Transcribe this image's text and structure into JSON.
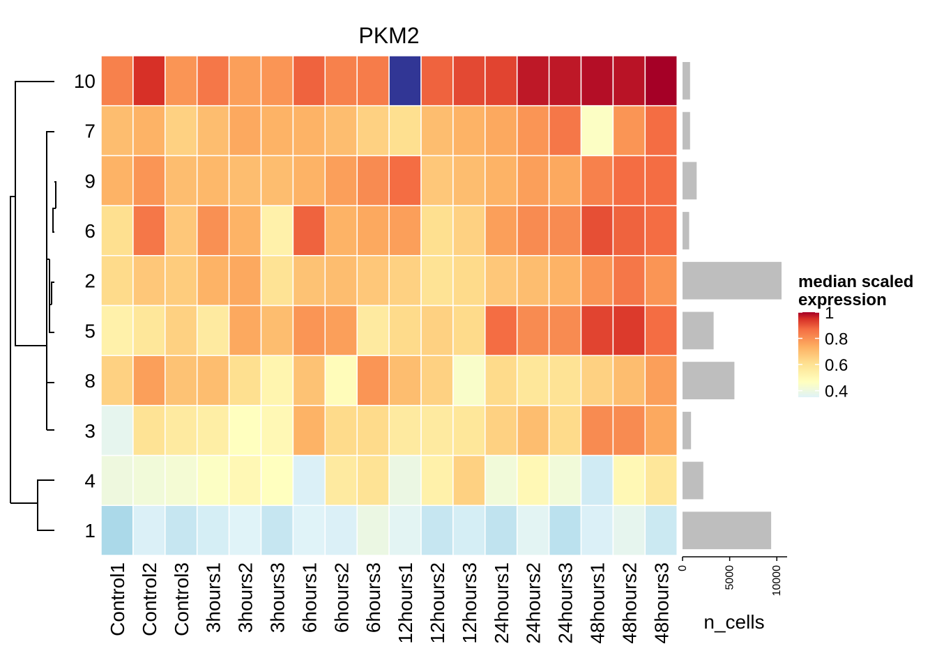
{
  "chart_data": {
    "type": "heatmap",
    "title": "PKM2",
    "columns": [
      "Control1",
      "Control2",
      "Control3",
      "3hours1",
      "3hours2",
      "3hours3",
      "6hours1",
      "6hours2",
      "6hours3",
      "12hours1",
      "12hours2",
      "12hours3",
      "24hours1",
      "24hours2",
      "24hours3",
      "48hours1",
      "48hours2",
      "48hours3"
    ],
    "rows": [
      "10",
      "7",
      "9",
      "6",
      "2",
      "5",
      "8",
      "3",
      "4",
      "1"
    ],
    "values": [
      [
        0.74,
        0.9,
        0.7,
        0.76,
        0.68,
        0.7,
        0.8,
        0.74,
        0.75,
        0.05,
        0.8,
        0.85,
        0.86,
        0.95,
        0.95,
        0.97,
        0.96,
        1.0
      ],
      [
        0.62,
        0.64,
        0.58,
        0.62,
        0.66,
        0.64,
        0.64,
        0.62,
        0.58,
        0.55,
        0.62,
        0.64,
        0.66,
        0.7,
        0.76,
        0.45,
        0.7,
        0.78
      ],
      [
        0.64,
        0.7,
        0.62,
        0.63,
        0.62,
        0.62,
        0.64,
        0.68,
        0.72,
        0.78,
        0.6,
        0.62,
        0.64,
        0.68,
        0.66,
        0.74,
        0.78,
        0.78
      ],
      [
        0.55,
        0.76,
        0.6,
        0.71,
        0.64,
        0.5,
        0.8,
        0.64,
        0.66,
        0.68,
        0.55,
        0.58,
        0.68,
        0.72,
        0.72,
        0.84,
        0.8,
        0.78
      ],
      [
        0.56,
        0.6,
        0.59,
        0.64,
        0.66,
        0.54,
        0.61,
        0.62,
        0.6,
        0.58,
        0.54,
        0.56,
        0.6,
        0.62,
        0.64,
        0.7,
        0.76,
        0.7
      ],
      [
        0.5,
        0.53,
        0.58,
        0.52,
        0.66,
        0.62,
        0.7,
        0.68,
        0.52,
        0.56,
        0.58,
        0.56,
        0.78,
        0.72,
        0.72,
        0.86,
        0.88,
        0.78
      ],
      [
        0.58,
        0.68,
        0.61,
        0.62,
        0.55,
        0.49,
        0.61,
        0.47,
        0.7,
        0.62,
        0.58,
        0.44,
        0.56,
        0.53,
        0.54,
        0.58,
        0.62,
        0.68
      ],
      [
        0.37,
        0.54,
        0.52,
        0.51,
        0.46,
        0.48,
        0.64,
        0.56,
        0.56,
        0.52,
        0.52,
        0.53,
        0.58,
        0.62,
        0.56,
        0.72,
        0.72,
        0.66
      ],
      [
        0.4,
        0.41,
        0.42,
        0.45,
        0.48,
        0.46,
        0.34,
        0.52,
        0.54,
        0.39,
        0.5,
        0.58,
        0.41,
        0.48,
        0.41,
        0.32,
        0.48,
        0.53
      ],
      [
        0.25,
        0.34,
        0.3,
        0.33,
        0.35,
        0.3,
        0.35,
        0.34,
        0.39,
        0.36,
        0.3,
        0.33,
        0.29,
        0.36,
        0.28,
        0.34,
        0.37,
        0.31
      ]
    ],
    "n_cells": [
      800,
      800,
      1500,
      700,
      10500,
      3300,
      5500,
      900,
      2200,
      9400
    ],
    "n_cells_axis": {
      "label": "n_cells",
      "ticks": [
        0,
        5000,
        10000
      ],
      "max": 10500
    },
    "legend": {
      "title_line1": "median scaled",
      "title_line2": "expression",
      "ticks": [
        "1",
        "0.8",
        "0.6",
        "0.4"
      ],
      "range": [
        0.35,
        1.0
      ],
      "placement": "right"
    },
    "dendrogram": "left",
    "colors": {
      "scale": [
        "#abd9e9",
        "#e0f3f8",
        "#ffffbf",
        "#fee090",
        "#fdae61",
        "#f46d43",
        "#d73027",
        "#a50026"
      ],
      "outlier": "#313695",
      "bar": "#bebebe"
    }
  }
}
